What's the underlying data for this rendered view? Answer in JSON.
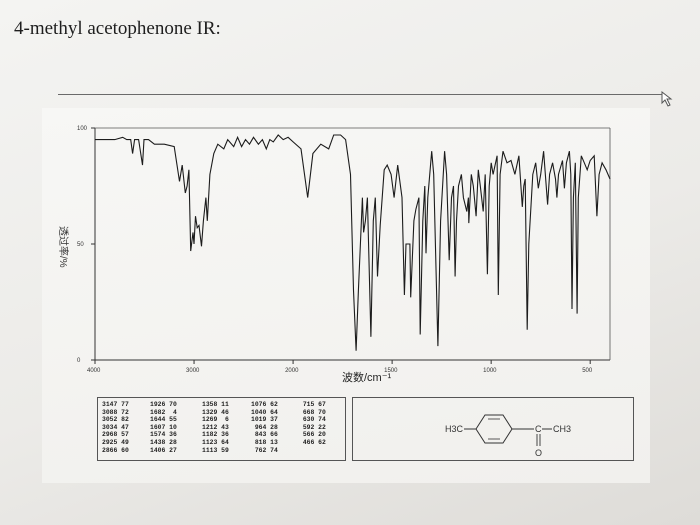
{
  "question_title": "4-methyl acetophenone IR:",
  "chart_data": {
    "type": "line",
    "title": "",
    "xlabel": "波数/cm⁻¹",
    "ylabel": "透过率/%",
    "x_reversed": true,
    "xlim": [
      4000,
      400
    ],
    "ylim": [
      0,
      100
    ],
    "x_ticks": [
      "4000",
      "3000",
      "2000",
      "1500",
      "1000",
      "500"
    ],
    "y_ticks": [
      "100",
      "50",
      "0"
    ],
    "grid": false,
    "series": [
      {
        "points": [
          [
            4000,
            95
          ],
          [
            3800,
            95
          ],
          [
            3720,
            96
          ],
          [
            3680,
            95
          ],
          [
            3640,
            95
          ],
          [
            3620,
            89
          ],
          [
            3600,
            95
          ],
          [
            3560,
            95
          ],
          [
            3520,
            84
          ],
          [
            3505,
            95
          ],
          [
            3460,
            95
          ],
          [
            3400,
            93
          ],
          [
            3300,
            93
          ],
          [
            3200,
            92
          ],
          [
            3147,
            77
          ],
          [
            3120,
            84
          ],
          [
            3088,
            72
          ],
          [
            3070,
            75
          ],
          [
            3052,
            82
          ],
          [
            3034,
            47
          ],
          [
            3010,
            55
          ],
          [
            3000,
            50
          ],
          [
            2985,
            62
          ],
          [
            2968,
            57
          ],
          [
            2950,
            58
          ],
          [
            2925,
            49
          ],
          [
            2905,
            60
          ],
          [
            2880,
            70
          ],
          [
            2866,
            60
          ],
          [
            2840,
            80
          ],
          [
            2800,
            89
          ],
          [
            2760,
            93
          ],
          [
            2700,
            91
          ],
          [
            2660,
            95
          ],
          [
            2600,
            92
          ],
          [
            2560,
            96
          ],
          [
            2520,
            92
          ],
          [
            2480,
            95
          ],
          [
            2440,
            93
          ],
          [
            2400,
            96
          ],
          [
            2350,
            93
          ],
          [
            2310,
            95
          ],
          [
            2270,
            91
          ],
          [
            2235,
            95
          ],
          [
            2200,
            94
          ],
          [
            2150,
            97
          ],
          [
            2100,
            95
          ],
          [
            2050,
            96
          ],
          [
            2000,
            94
          ],
          [
            1960,
            91
          ],
          [
            1926,
            70
          ],
          [
            1900,
            89
          ],
          [
            1860,
            93
          ],
          [
            1820,
            91
          ],
          [
            1795,
            97
          ],
          [
            1760,
            97
          ],
          [
            1735,
            95
          ],
          [
            1710,
            80
          ],
          [
            1695,
            30
          ],
          [
            1682,
            4
          ],
          [
            1670,
            30
          ],
          [
            1650,
            70
          ],
          [
            1644,
            55
          ],
          [
            1635,
            60
          ],
          [
            1625,
            70
          ],
          [
            1607,
            10
          ],
          [
            1595,
            60
          ],
          [
            1585,
            70
          ],
          [
            1574,
            36
          ],
          [
            1560,
            58
          ],
          [
            1540,
            82
          ],
          [
            1525,
            84
          ],
          [
            1505,
            80
          ],
          [
            1490,
            70
          ],
          [
            1472,
            84
          ],
          [
            1450,
            70
          ],
          [
            1438,
            28
          ],
          [
            1430,
            50
          ],
          [
            1410,
            50
          ],
          [
            1406,
            27
          ],
          [
            1390,
            60
          ],
          [
            1380,
            65
          ],
          [
            1365,
            70
          ],
          [
            1358,
            11
          ],
          [
            1345,
            60
          ],
          [
            1335,
            75
          ],
          [
            1329,
            46
          ],
          [
            1320,
            70
          ],
          [
            1300,
            90
          ],
          [
            1290,
            80
          ],
          [
            1269,
            6
          ],
          [
            1255,
            60
          ],
          [
            1245,
            75
          ],
          [
            1235,
            90
          ],
          [
            1225,
            80
          ],
          [
            1212,
            43
          ],
          [
            1200,
            70
          ],
          [
            1190,
            75
          ],
          [
            1182,
            36
          ],
          [
            1175,
            60
          ],
          [
            1165,
            75
          ],
          [
            1150,
            80
          ],
          [
            1140,
            70
          ],
          [
            1123,
            64
          ],
          [
            1115,
            70
          ],
          [
            1113,
            59
          ],
          [
            1100,
            80
          ],
          [
            1090,
            75
          ],
          [
            1076,
            62
          ],
          [
            1065,
            82
          ],
          [
            1055,
            75
          ],
          [
            1040,
            64
          ],
          [
            1030,
            80
          ],
          [
            1019,
            37
          ],
          [
            1010,
            75
          ],
          [
            1000,
            85
          ],
          [
            990,
            80
          ],
          [
            970,
            88
          ],
          [
            964,
            28
          ],
          [
            955,
            80
          ],
          [
            940,
            90
          ],
          [
            920,
            85
          ],
          [
            900,
            86
          ],
          [
            880,
            80
          ],
          [
            860,
            88
          ],
          [
            843,
            66
          ],
          [
            835,
            75
          ],
          [
            828,
            78
          ],
          [
            818,
            13
          ],
          [
            810,
            50
          ],
          [
            790,
            80
          ],
          [
            775,
            85
          ],
          [
            762,
            74
          ],
          [
            750,
            80
          ],
          [
            735,
            90
          ],
          [
            715,
            67
          ],
          [
            705,
            80
          ],
          [
            690,
            85
          ],
          [
            675,
            78
          ],
          [
            668,
            70
          ],
          [
            660,
            80
          ],
          [
            640,
            86
          ],
          [
            630,
            74
          ],
          [
            620,
            85
          ],
          [
            605,
            90
          ],
          [
            598,
            80
          ],
          [
            592,
            22
          ],
          [
            585,
            70
          ],
          [
            575,
            85
          ],
          [
            566,
            20
          ],
          [
            560,
            70
          ],
          [
            545,
            88
          ],
          [
            530,
            85
          ],
          [
            515,
            82
          ],
          [
            500,
            86
          ],
          [
            480,
            88
          ],
          [
            466,
            62
          ],
          [
            455,
            80
          ],
          [
            440,
            85
          ],
          [
            420,
            82
          ],
          [
            400,
            78
          ]
        ]
      }
    ],
    "peak_table": [
      [
        "3147",
        "77"
      ],
      [
        "3088",
        "72"
      ],
      [
        "3052",
        "82"
      ],
      [
        "3034",
        "47"
      ],
      [
        "2968",
        "57"
      ],
      [
        "2925",
        "49"
      ],
      [
        "2866",
        "60"
      ],
      [
        "1926",
        "70"
      ],
      [
        "1682",
        "4"
      ],
      [
        "1644",
        "55"
      ],
      [
        "1607",
        "10"
      ],
      [
        "1574",
        "36"
      ],
      [
        "1438",
        "28"
      ],
      [
        "1406",
        "27"
      ],
      [
        "1358",
        "11"
      ],
      [
        "1329",
        "46"
      ],
      [
        "1269",
        "6"
      ],
      [
        "1212",
        "43"
      ],
      [
        "1182",
        "36"
      ],
      [
        "1123",
        "64"
      ],
      [
        "1113",
        "59"
      ],
      [
        "1076",
        "62"
      ],
      [
        "1040",
        "64"
      ],
      [
        "1019",
        "37"
      ],
      [
        "964",
        "28"
      ],
      [
        "843",
        "66"
      ],
      [
        "818",
        "13"
      ],
      [
        "762",
        "74"
      ],
      [
        "715",
        "67"
      ],
      [
        "668",
        "70"
      ],
      [
        "630",
        "74"
      ],
      [
        "592",
        "22"
      ],
      [
        "566",
        "20"
      ],
      [
        "466",
        "62"
      ]
    ]
  },
  "structure": {
    "left_group": "H3C",
    "right_group": "CH3",
    "carbonyl_c": "C",
    "oxygen": "O"
  }
}
